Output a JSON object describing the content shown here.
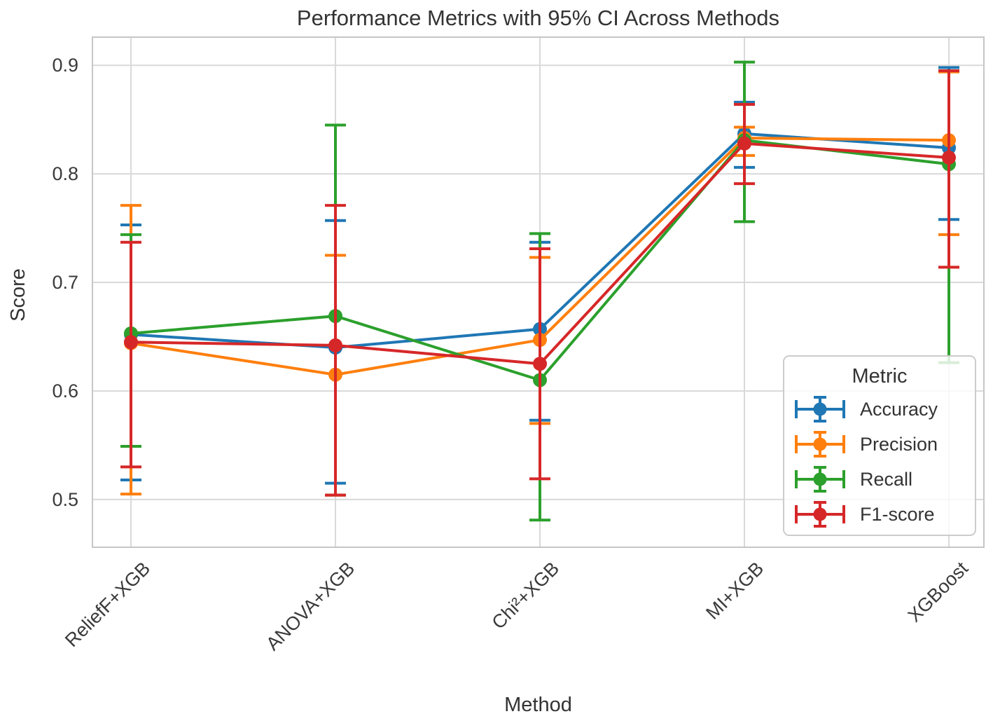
{
  "chart_data": {
    "type": "line",
    "error_bars": "95% CI",
    "title": "Performance Metrics with 95% CI Across Methods",
    "xlabel": "Method",
    "ylabel": "Score",
    "categories": [
      "ReliefF+XGB",
      "ANOVA+XGB",
      "Chi²+XGB",
      "MI+XGB",
      "XGBoost"
    ],
    "yticks": [
      "0.5",
      "0.6",
      "0.7",
      "0.8",
      "0.9"
    ],
    "ytick_values": [
      0.5,
      0.6,
      0.7,
      0.8,
      0.9
    ],
    "ylim": [
      0.456,
      0.926
    ],
    "grid": true,
    "grid_color": "#d9d9d9",
    "spine_color": "#c6c6c6",
    "legend": {
      "title": "Metric",
      "position": "lower right"
    },
    "series": [
      {
        "name": "Accuracy",
        "color": "#1f77b4",
        "values": [
          0.652,
          0.64,
          0.657,
          0.837,
          0.824
        ],
        "ci_low": [
          0.518,
          0.515,
          0.573,
          0.806,
          0.758
        ],
        "ci_high": [
          0.753,
          0.757,
          0.737,
          0.866,
          0.898
        ]
      },
      {
        "name": "Precision",
        "color": "#ff7f0e",
        "values": [
          0.644,
          0.615,
          0.647,
          0.833,
          0.831
        ],
        "ci_low": [
          0.505,
          0.504,
          0.57,
          0.817,
          0.744
        ],
        "ci_high": [
          0.771,
          0.725,
          0.723,
          0.843,
          0.894
        ]
      },
      {
        "name": "Recall",
        "color": "#2ca02c",
        "values": [
          0.653,
          0.669,
          0.61,
          0.831,
          0.809
        ],
        "ci_low": [
          0.549,
          0.504,
          0.481,
          0.756,
          0.626
        ],
        "ci_high": [
          0.744,
          0.845,
          0.745,
          0.903,
          0.895
        ]
      },
      {
        "name": "F1-score",
        "color": "#d62728",
        "values": [
          0.645,
          0.642,
          0.625,
          0.828,
          0.815
        ],
        "ci_low": [
          0.53,
          0.504,
          0.519,
          0.791,
          0.714
        ],
        "ci_high": [
          0.737,
          0.771,
          0.731,
          0.864,
          0.895
        ]
      }
    ]
  }
}
